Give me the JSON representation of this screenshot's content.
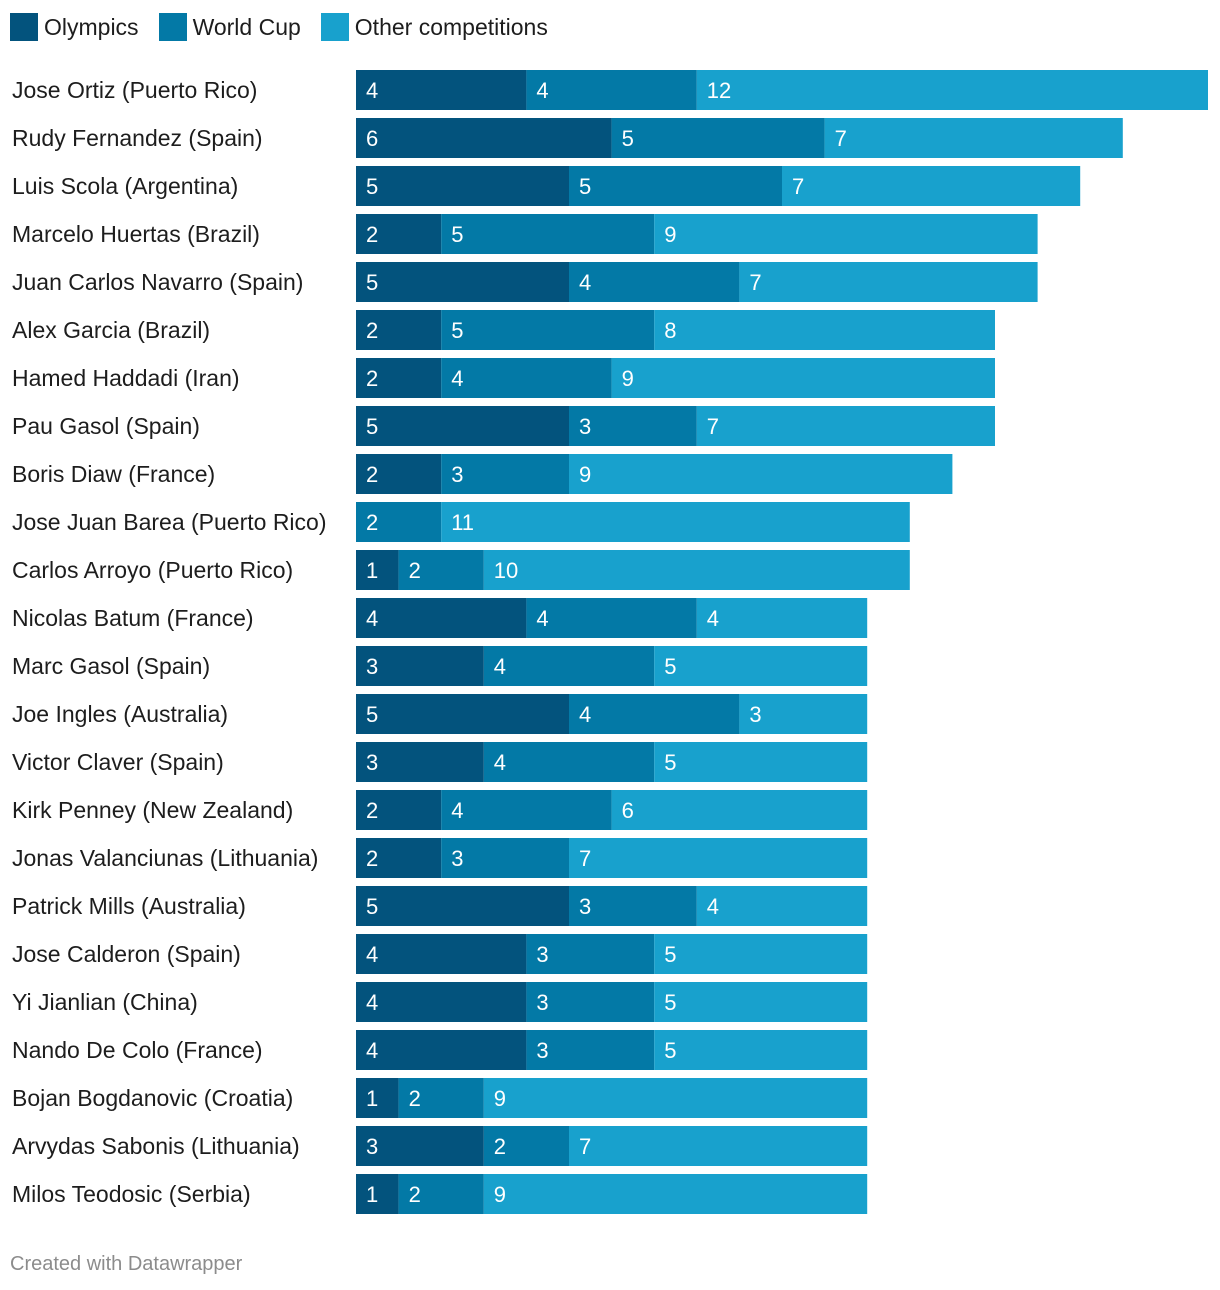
{
  "chart_data": {
    "type": "bar",
    "orientation": "horizontal",
    "stacked": true,
    "legend_position": "top-left",
    "grid": false,
    "categories": [
      "Jose Ortiz (Puerto Rico)",
      "Rudy Fernandez (Spain)",
      "Luis Scola (Argentina)",
      "Marcelo Huertas (Brazil)",
      "Juan Carlos Navarro (Spain)",
      "Alex Garcia (Brazil)",
      "Hamed Haddadi (Iran)",
      "Pau Gasol (Spain)",
      "Boris Diaw (France)",
      "Jose Juan Barea (Puerto Rico)",
      "Carlos Arroyo (Puerto Rico)",
      "Nicolas Batum (France)",
      "Marc Gasol (Spain)",
      "Joe Ingles (Australia)",
      "Victor Claver (Spain)",
      "Kirk Penney (New Zealand)",
      "Jonas Valanciunas (Lithuania)",
      "Patrick Mills (Australia)",
      "Jose Calderon (Spain)",
      "Yi Jianlian (China)",
      "Nando De Colo (France)",
      "Bojan Bogdanovic (Croatia)",
      "Arvydas Sabonis (Lithuania)",
      "Milos Teodosic (Serbia)"
    ],
    "series": [
      {
        "name": "Olympics",
        "color": "#03537d",
        "values": [
          4,
          6,
          5,
          2,
          5,
          2,
          2,
          5,
          2,
          0,
          1,
          4,
          3,
          5,
          3,
          2,
          2,
          5,
          4,
          4,
          4,
          1,
          3,
          1
        ]
      },
      {
        "name": "World Cup",
        "color": "#0379a6",
        "values": [
          4,
          5,
          5,
          5,
          4,
          5,
          4,
          3,
          3,
          2,
          2,
          4,
          4,
          4,
          4,
          4,
          3,
          3,
          3,
          3,
          3,
          2,
          2,
          2
        ]
      },
      {
        "name": "Other competitions",
        "color": "#18a1cd",
        "values": [
          12,
          7,
          7,
          9,
          7,
          8,
          9,
          7,
          9,
          11,
          10,
          4,
          5,
          3,
          5,
          6,
          7,
          4,
          5,
          5,
          5,
          9,
          7,
          9
        ]
      }
    ]
  },
  "footer": {
    "credit": "Created with Datawrapper"
  }
}
